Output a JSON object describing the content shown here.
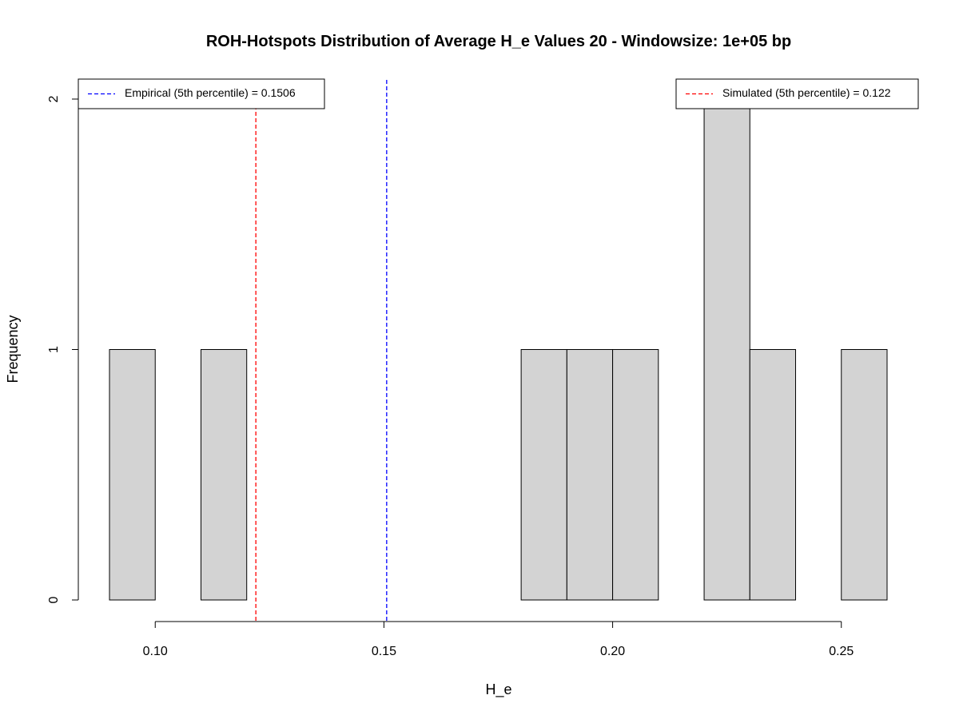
{
  "chart_data": {
    "type": "bar",
    "subtype": "histogram",
    "title": "ROH-Hotspots Distribution of Average H_e Values 20 - Windowsize: 1e+05 bp",
    "xlabel": "H_e",
    "ylabel": "Frequency",
    "xlim": [
      0.09,
      0.26
    ],
    "ylim": [
      0,
      2
    ],
    "bin_width": 0.01,
    "bins": [
      {
        "start": 0.09,
        "end": 0.1,
        "count": 1
      },
      {
        "start": 0.1,
        "end": 0.11,
        "count": 0
      },
      {
        "start": 0.11,
        "end": 0.12,
        "count": 1
      },
      {
        "start": 0.12,
        "end": 0.13,
        "count": 0
      },
      {
        "start": 0.13,
        "end": 0.14,
        "count": 0
      },
      {
        "start": 0.14,
        "end": 0.15,
        "count": 0
      },
      {
        "start": 0.15,
        "end": 0.16,
        "count": 0
      },
      {
        "start": 0.16,
        "end": 0.17,
        "count": 0
      },
      {
        "start": 0.17,
        "end": 0.18,
        "count": 0
      },
      {
        "start": 0.18,
        "end": 0.19,
        "count": 1
      },
      {
        "start": 0.19,
        "end": 0.2,
        "count": 1
      },
      {
        "start": 0.2,
        "end": 0.21,
        "count": 1
      },
      {
        "start": 0.21,
        "end": 0.22,
        "count": 0
      },
      {
        "start": 0.22,
        "end": 0.23,
        "count": 2
      },
      {
        "start": 0.23,
        "end": 0.24,
        "count": 1
      },
      {
        "start": 0.24,
        "end": 0.25,
        "count": 0
      },
      {
        "start": 0.25,
        "end": 0.26,
        "count": 1
      }
    ],
    "bar_color": "#d3d3d3",
    "x_ticks": [
      {
        "value": 0.1,
        "label": "0.10"
      },
      {
        "value": 0.15,
        "label": "0.15"
      },
      {
        "value": 0.2,
        "label": "0.20"
      },
      {
        "value": 0.25,
        "label": "0.25"
      }
    ],
    "y_ticks": [
      {
        "value": 0,
        "label": "0"
      },
      {
        "value": 1,
        "label": "1"
      },
      {
        "value": 2,
        "label": "2"
      }
    ],
    "reference_lines": [
      {
        "name": "Empirical (5th percentile) = 0.1506",
        "value": 0.1506,
        "color": "#0000ff",
        "style": "dashed"
      },
      {
        "name": "Simulated (5th percentile) = 0.122",
        "value": 0.122,
        "color": "#ff0000",
        "style": "dashed"
      }
    ],
    "legends": [
      {
        "placement": "top-left",
        "entries": [
          {
            "label": "Empirical (5th percentile) = 0.1506",
            "color": "#0000ff"
          }
        ]
      },
      {
        "placement": "top-right",
        "entries": [
          {
            "label": "Simulated (5th percentile) = 0.122",
            "color": "#ff0000"
          }
        ]
      }
    ],
    "grid": false
  }
}
